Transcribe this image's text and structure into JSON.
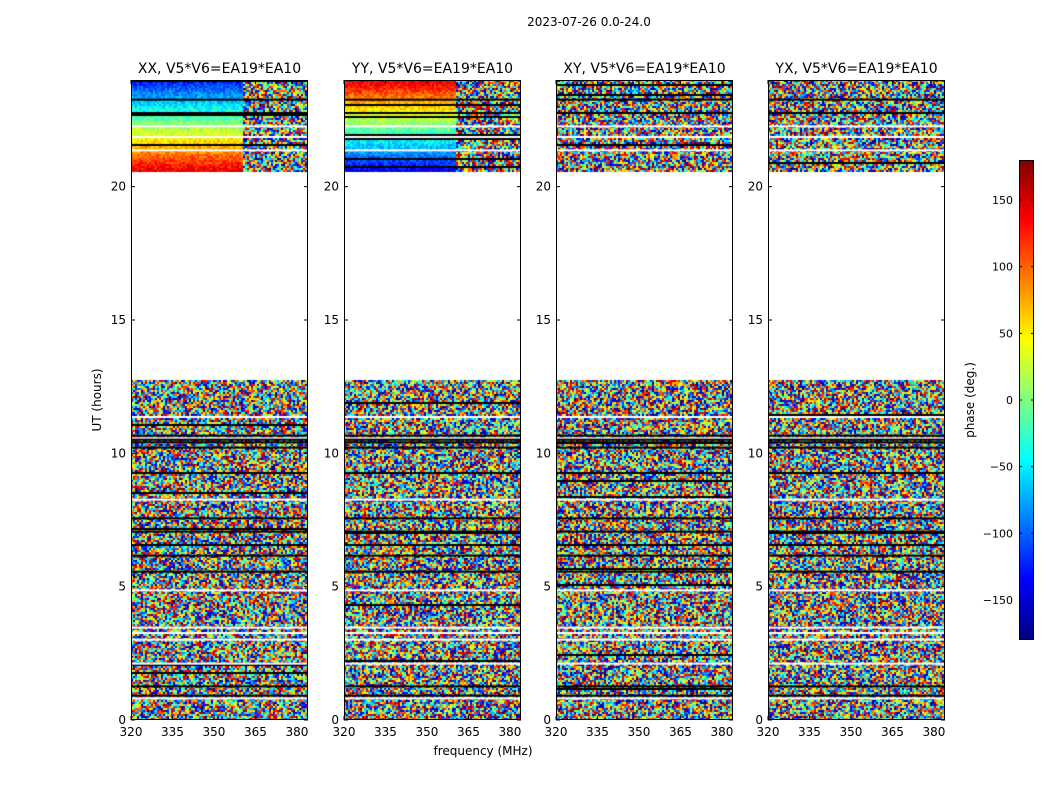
{
  "figure_title": "2023-07-26 0.0-24.0",
  "chart_data": {
    "type": "heatmap",
    "shared_xlabel": "frequency (MHz)",
    "shared_ylabel": "UT (hours)",
    "xlim": [
      320,
      384
    ],
    "ylim": [
      0,
      24
    ],
    "x_ticks": [
      320,
      335,
      350,
      365,
      380
    ],
    "y_ticks": [
      0,
      5,
      10,
      15,
      20
    ],
    "no_data_range_hours": [
      12.8,
      20.6
    ],
    "colorbar": {
      "label": "phase (deg.)",
      "min": -180,
      "max": 180,
      "ticks": [
        150,
        100,
        50,
        0,
        -50,
        -100,
        -150
      ],
      "tick_labels": [
        "150",
        "100",
        "50",
        "0",
        "−50",
        "−100",
        "−150"
      ],
      "colormap": "jet"
    },
    "panels": [
      {
        "title": "XX, V5*V6=EA19*EA10",
        "pol": "XX"
      },
      {
        "title": "YY, V5*V6=EA19*EA10",
        "pol": "YY"
      },
      {
        "title": "XY, V5*V6=EA19*EA10",
        "pol": "XY"
      },
      {
        "title": "YX, V5*V6=EA19*EA10",
        "pol": "YX"
      }
    ]
  }
}
